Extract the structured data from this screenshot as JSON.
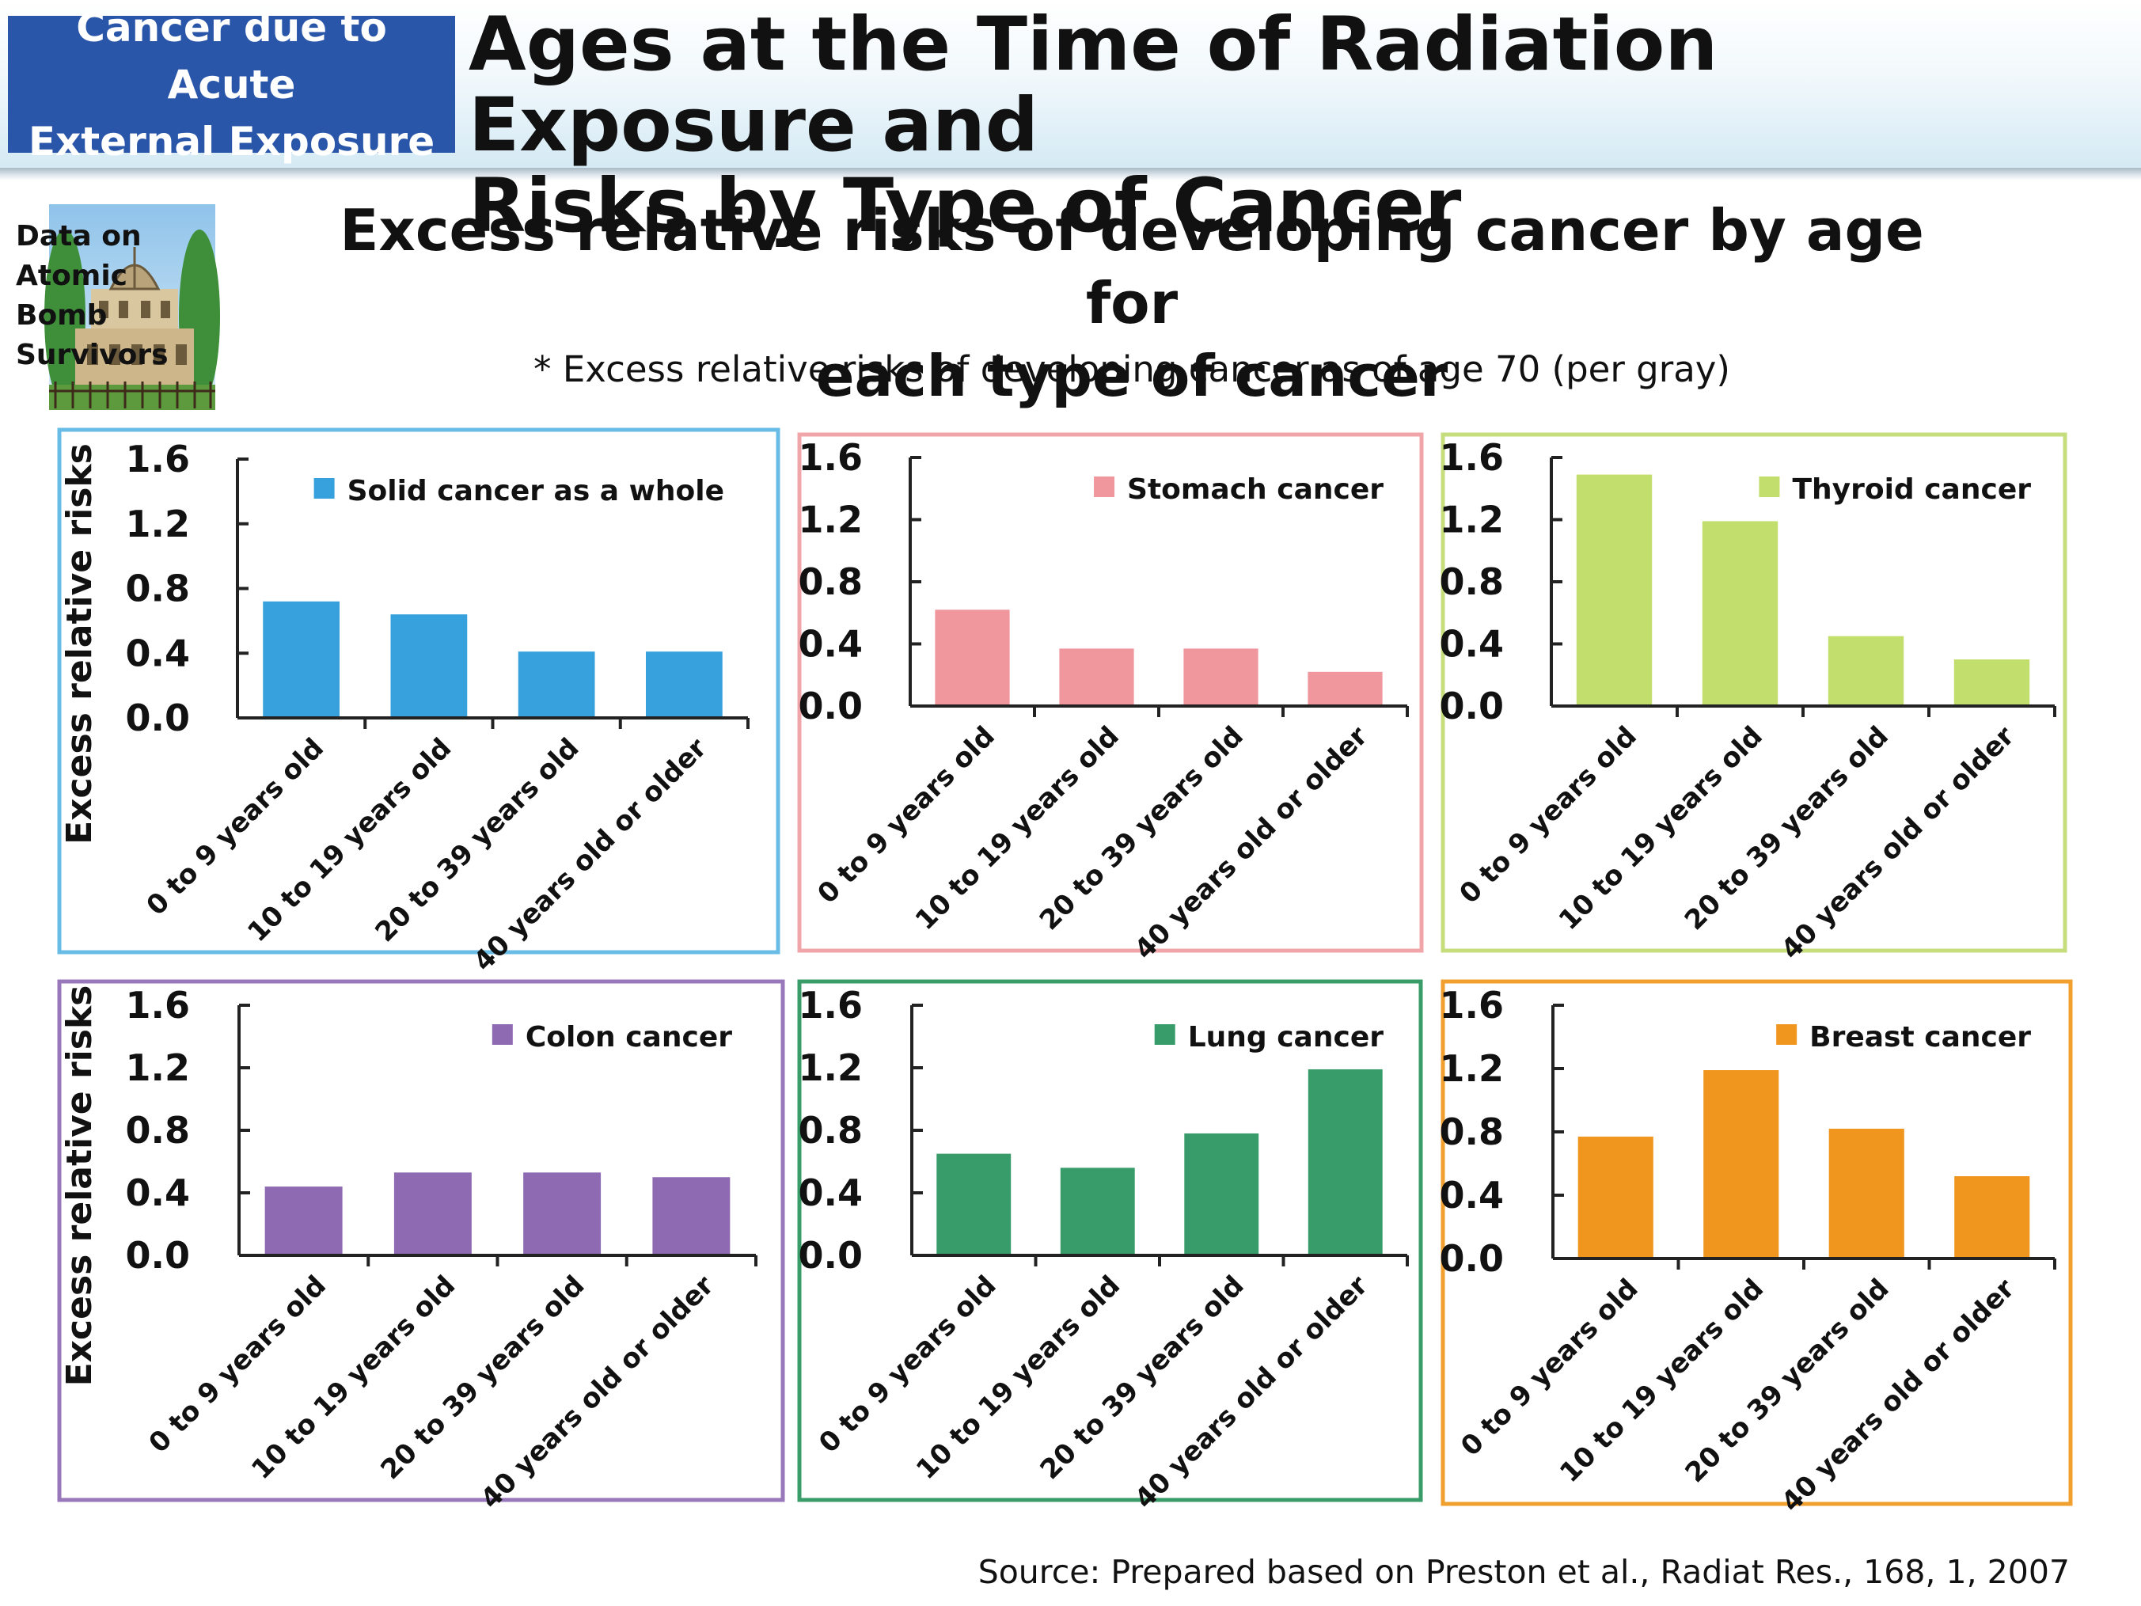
{
  "header": {
    "category_line1": "Cancer due to Acute",
    "category_line2": "External Exposure",
    "title_line1": "Ages at the Time of Radiation Exposure and",
    "title_line2": "Risks by Type of Cancer",
    "accent_color": "#2a56aa"
  },
  "badge": {
    "line1": "Data on Atomic",
    "line2": "Bomb Survivors"
  },
  "title_line1": "Excess relative risks of developing cancer by age for",
  "title_line2": "each type of cancer",
  "note": "* Excess relative risks of developing cancer as of age 70 (per gray)",
  "source": "Source: Prepared based on Preston et al., Radiat Res., 168, 1, 2007",
  "chart_data": [
    {
      "type": "bar",
      "series_name": "Solid cancer as a whole",
      "color": "#36a1dc",
      "frame_color": "#69bce5",
      "categories": [
        "0 to 9 years old",
        "10 to 19 years old",
        "20 to 39 years old",
        "40 years old or older"
      ],
      "values": [
        0.72,
        0.64,
        0.41,
        0.41
      ],
      "ylim": [
        0,
        1.6
      ],
      "yticks": [
        "0.0",
        "0.4",
        "0.8",
        "1.2",
        "1.6"
      ],
      "ylabel": "Excess relative risks",
      "legend": "top-right"
    },
    {
      "type": "bar",
      "series_name": "Stomach cancer",
      "color": "#f0979d",
      "frame_color": "#f0a5a8",
      "categories": [
        "0 to 9 years old",
        "10 to 19 years old",
        "20 to 39 years old",
        "40 years old or older"
      ],
      "values": [
        0.62,
        0.37,
        0.37,
        0.22
      ],
      "ylim": [
        0,
        1.6
      ],
      "yticks": [
        "0.0",
        "0.4",
        "0.8",
        "1.2",
        "1.6"
      ],
      "ylabel": "",
      "legend": "top-right"
    },
    {
      "type": "bar",
      "series_name": "Thyroid cancer",
      "color": "#c2de6c",
      "frame_color": "#c5dd7d",
      "categories": [
        "0 to 9 years old",
        "10 to 19 years old",
        "20 to 39 years old",
        "40 years old or older"
      ],
      "values": [
        1.49,
        1.19,
        0.45,
        0.3
      ],
      "ylim": [
        0,
        1.6
      ],
      "yticks": [
        "0.0",
        "0.4",
        "0.8",
        "1.2",
        "1.6"
      ],
      "ylabel": "",
      "legend": "top-right"
    },
    {
      "type": "bar",
      "series_name": "Colon cancer",
      "color": "#8e6ab2",
      "frame_color": "#9977bb",
      "categories": [
        "0 to 9 years old",
        "10 to 19 years old",
        "20 to 39 years old",
        "40 years old or older"
      ],
      "values": [
        0.44,
        0.53,
        0.53,
        0.5
      ],
      "ylim": [
        0,
        1.6
      ],
      "yticks": [
        "0.0",
        "0.4",
        "0.8",
        "1.2",
        "1.6"
      ],
      "ylabel": "Excess relative risks",
      "legend": "top-right"
    },
    {
      "type": "bar",
      "series_name": "Lung cancer",
      "color": "#379c6a",
      "frame_color": "#3a9c69",
      "categories": [
        "0 to 9 years old",
        "10 to 19 years old",
        "20 to 39 years old",
        "40 years old or older"
      ],
      "values": [
        0.65,
        0.56,
        0.78,
        1.19
      ],
      "ylim": [
        0,
        1.6
      ],
      "yticks": [
        "0.0",
        "0.4",
        "0.8",
        "1.2",
        "1.6"
      ],
      "ylabel": "",
      "legend": "top-right"
    },
    {
      "type": "bar",
      "series_name": "Breast cancer",
      "color": "#f0961f",
      "frame_color": "#f0a02e",
      "categories": [
        "0 to 9 years old",
        "10 to 19 years old",
        "20 to 39 years old",
        "40 years old or older"
      ],
      "values": [
        0.77,
        1.19,
        0.82,
        0.52
      ],
      "ylim": [
        0,
        1.6
      ],
      "yticks": [
        "0.0",
        "0.4",
        "0.8",
        "1.2",
        "1.6"
      ],
      "ylabel": "",
      "legend": "top-right"
    }
  ]
}
